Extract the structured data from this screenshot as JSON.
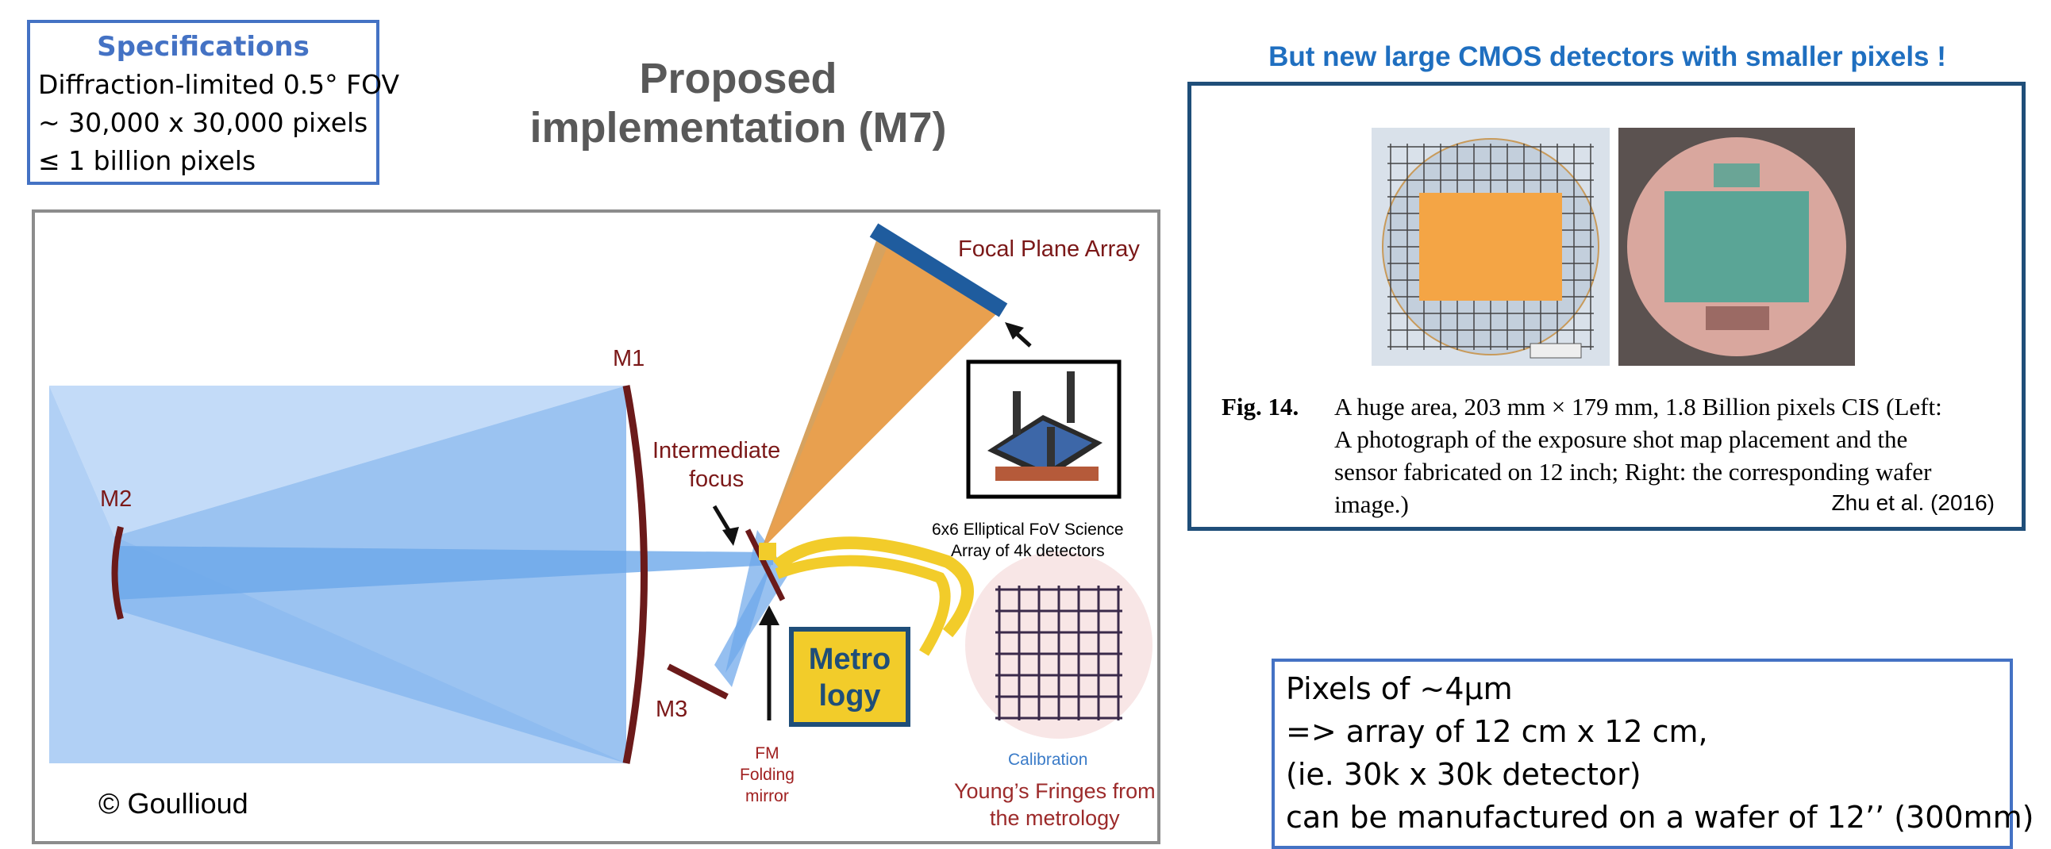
{
  "specs": {
    "title": "Specifications",
    "lines": [
      "Diffraction-limited 0.5° FOV",
      "~ 30,000 x 30,000 pixels",
      " ≤ 1 billion pixels"
    ]
  },
  "title": {
    "line1": "Proposed",
    "line2": "implementation (M7)"
  },
  "diagram": {
    "focal_plane": "Focal Plane Array",
    "m1": "M1",
    "m2": "M2",
    "m3": "M3",
    "intermediate_focus": [
      "Intermediate",
      "focus"
    ],
    "array_caption": [
      "6x6 Elliptical FoV Science",
      "Array of 4k detectors"
    ],
    "metrology": [
      "Metro",
      "logy"
    ],
    "fm": [
      "FM",
      "Folding",
      "mirror"
    ],
    "calibration": "Calibration",
    "fringes": [
      "Young’s Fringes from",
      "the metrology"
    ],
    "credit": "© Goullioud"
  },
  "cmos": {
    "heading": "But new large CMOS detectors with smaller pixels !",
    "fig_number": "Fig. 14.",
    "caption": [
      "A huge area, 203 mm × 179 mm, 1.8 Billion pixels CIS (Left:",
      "A photograph of the exposure shot map placement and the",
      "sensor fabricated on 12 inch; Right: the corresponding wafer",
      "image.)"
    ],
    "citation": "Zhu et al. (2016)"
  },
  "pixels": {
    "lines": [
      "Pixels of ~4µm",
      "=> array of 12 cm x 12 cm,",
      "(ie. 30k x 30k detector)",
      "can be manufactured on a wafer of 12’’ (300mm)"
    ]
  },
  "colors": {
    "accent_blue": "#4472c4",
    "heading_blue": "#1f6fc0",
    "label_red": "#7b1818",
    "metrology_yellow": "#f2cc2a",
    "fpa_orange": "#e5963c"
  }
}
